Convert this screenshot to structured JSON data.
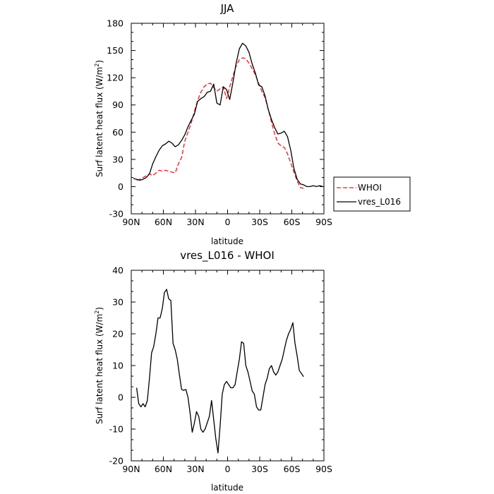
{
  "chart_data": [
    {
      "type": "line",
      "title": "JJA",
      "xlabel": "latitude",
      "ylabel": "Surf latent heat flux (W/m",
      "ylabel_sup": "2",
      "ylabel_close": ")",
      "xlim": [
        90,
        -90
      ],
      "ylim": [
        -30,
        180
      ],
      "xticks": [
        90,
        60,
        30,
        0,
        -30,
        -60,
        -90
      ],
      "xtick_labels": [
        "90N",
        "60N",
        "30N",
        "0",
        "30S",
        "60S",
        "90S"
      ],
      "yticks": [
        -30,
        0,
        30,
        60,
        90,
        120,
        150,
        180
      ],
      "ytick_labels": [
        "-30",
        "0",
        "30",
        "60",
        "90",
        "120",
        "150",
        "180"
      ],
      "legend_position": "right-bottom outside",
      "series": [
        {
          "name": "WHOI",
          "color": "#e8191f",
          "dash": "dashed",
          "x": [
            85,
            82,
            79,
            76,
            73,
            70,
            67,
            64,
            61,
            58,
            55,
            52,
            49,
            46,
            43,
            40,
            37,
            34,
            31,
            28,
            25,
            22,
            19,
            16,
            13,
            10,
            7,
            4,
            1,
            -2,
            -5,
            -8,
            -11,
            -14,
            -17,
            -20,
            -23,
            -26,
            -29,
            -32,
            -35,
            -38,
            -41,
            -44,
            -47,
            -50,
            -53,
            -56,
            -59,
            -62,
            -65,
            -68,
            -71
          ],
          "y": [
            7,
            8,
            10,
            12,
            14,
            12,
            15,
            18,
            17,
            18,
            17,
            16,
            15,
            25,
            32,
            50,
            60,
            70,
            83,
            95,
            104,
            110,
            113,
            114,
            109,
            105,
            108,
            110,
            97,
            110,
            122,
            133,
            140,
            142,
            141,
            136,
            130,
            123,
            114,
            105,
            98,
            85,
            71,
            58,
            48,
            45,
            43,
            36,
            26,
            16,
            6,
            -1,
            -2
          ]
        },
        {
          "name": "vres_L016",
          "color": "#000000",
          "dash": "solid",
          "x": [
            88,
            85,
            82,
            79,
            76,
            73,
            70,
            67,
            64,
            61,
            58,
            55,
            52,
            49,
            46,
            43,
            40,
            37,
            34,
            31,
            28,
            25,
            22,
            19,
            16,
            13,
            10,
            7,
            4,
            1,
            -2,
            -5,
            -8,
            -11,
            -14,
            -17,
            -20,
            -23,
            -26,
            -29,
            -32,
            -35,
            -38,
            -41,
            -44,
            -47,
            -50,
            -53,
            -56,
            -59,
            -62,
            -65,
            -68,
            -71,
            -74,
            -77,
            -80,
            -83,
            -86,
            -89
          ],
          "y": [
            9,
            8,
            7,
            8,
            10,
            14,
            25,
            33,
            40,
            45,
            47,
            50,
            48,
            44,
            46,
            51,
            57,
            66,
            73,
            80,
            94,
            97,
            99,
            104,
            105,
            113,
            92,
            90,
            110,
            107,
            96,
            115,
            136,
            152,
            158,
            155,
            148,
            135,
            125,
            112,
            110,
            100,
            85,
            74,
            65,
            58,
            59,
            61,
            55,
            40,
            20,
            8,
            3,
            2,
            0,
            0,
            1,
            0,
            1,
            0
          ]
        }
      ]
    },
    {
      "type": "line",
      "title": "vres_L016 - WHOI",
      "xlabel": "latitude",
      "ylabel": "Surf latent heat flux (W/m",
      "ylabel_sup": "2",
      "ylabel_close": ")",
      "xlim": [
        90,
        -90
      ],
      "ylim": [
        -20,
        40
      ],
      "xticks": [
        90,
        60,
        30,
        0,
        -30,
        -60,
        -90
      ],
      "xtick_labels": [
        "90N",
        "60N",
        "30N",
        "0",
        "30S",
        "60S",
        "90S"
      ],
      "yticks": [
        -20,
        -10,
        0,
        10,
        20,
        30,
        40
      ],
      "ytick_labels": [
        "-20",
        "-10",
        "0",
        "10",
        "20",
        "30",
        "40"
      ],
      "series": [
        {
          "name": "vres_L016 - WHOI",
          "color": "#000000",
          "dash": "solid",
          "x": [
            85,
            83,
            81,
            79,
            77,
            75,
            73,
            71,
            69,
            67,
            65,
            63,
            61,
            59,
            57,
            55,
            53,
            51,
            49,
            47,
            45,
            43,
            41,
            39,
            37,
            35,
            33,
            31,
            29,
            27,
            25,
            23,
            21,
            19,
            17,
            15,
            13,
            11,
            9,
            7,
            5,
            3,
            1,
            -1,
            -3,
            -5,
            -7,
            -9,
            -11,
            -13,
            -15,
            -17,
            -19,
            -21,
            -23,
            -25,
            -27,
            -29,
            -31,
            -33,
            -35,
            -37,
            -39,
            -41,
            -43,
            -45,
            -47,
            -49,
            -51,
            -53,
            -55,
            -57,
            -59,
            -61,
            -63,
            -65,
            -67,
            -69,
            -71
          ],
          "y": [
            3,
            -2,
            -3,
            -2,
            -3,
            -1,
            6,
            14,
            16,
            20,
            25,
            25,
            28,
            33,
            34,
            31,
            30.5,
            17,
            15,
            12,
            7,
            2.5,
            2.2,
            2.5,
            0,
            -5,
            -11,
            -8,
            -4.5,
            -6,
            -10,
            -11,
            -10,
            -8,
            -6,
            -1,
            -7,
            -13,
            -17.5,
            -9,
            1,
            4,
            5,
            4,
            3,
            3,
            4,
            8,
            12,
            17.5,
            17,
            10,
            8,
            5,
            2,
            1,
            -3,
            -4,
            -4,
            0,
            4,
            6,
            9,
            10,
            8,
            7,
            8,
            10,
            12,
            15,
            18,
            20,
            21.5,
            23.5,
            17,
            13,
            8.5,
            7.5,
            6.5
          ]
        }
      ]
    }
  ]
}
